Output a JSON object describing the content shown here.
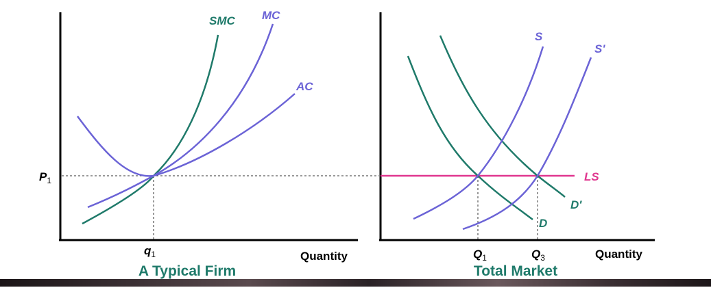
{
  "colors": {
    "teal": "#1f7a6a",
    "purple": "#6b63d6",
    "pink": "#e0368f",
    "axis": "#000000",
    "caption": "#1f7a6a"
  },
  "firm": {
    "title": "A Typical Firm",
    "x_axis_label": "Quantity",
    "price_label_main": "P",
    "price_label_sub": "1",
    "q_label_main": "q",
    "q_label_sub": "1",
    "curves": {
      "smc": "SMC",
      "mc": "MC",
      "ac": "AC"
    }
  },
  "market": {
    "title": "Total Market",
    "x_axis_label": "Quantity",
    "q1_main": "Q",
    "q1_sub": "1",
    "q3_main": "Q",
    "q3_sub": "3",
    "curves": {
      "s": "S",
      "s_prime": "S'",
      "d": "D",
      "d_prime": "D'",
      "ls": "LS"
    }
  }
}
